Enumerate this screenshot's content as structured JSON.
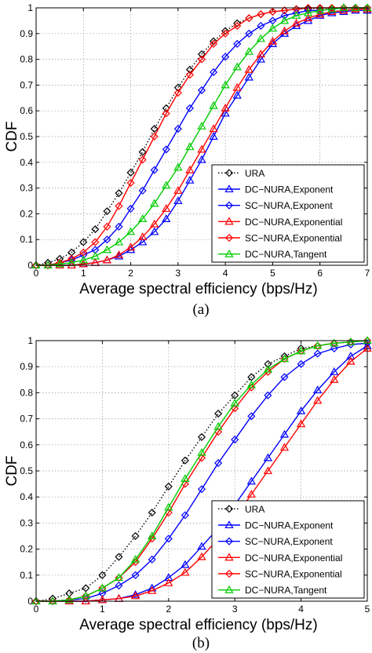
{
  "figure": {
    "captions": [
      "(a)",
      "(b)"
    ]
  },
  "chart_data": [
    {
      "type": "line",
      "caption": "(a)",
      "xlabel": "Average spectral efficiency (bps/Hz)",
      "ylabel": "CDF",
      "xlim": [
        0,
        7
      ],
      "ylim": [
        0,
        1
      ],
      "xticks": [
        "0",
        "1",
        "2",
        "3",
        "4",
        "5",
        "6",
        "7"
      ],
      "yticks": [
        "0",
        "0.1",
        "0.2",
        "0.3",
        "0.4",
        "0.5",
        "0.6",
        "0.7",
        "0.8",
        "0.9",
        "1"
      ],
      "grid": true,
      "legend_position": "bottom-right",
      "series": [
        {
          "name": "URA",
          "color": "#000000",
          "dash": "dotted",
          "marker": "diamond",
          "x": [
            0,
            0.25,
            0.5,
            0.75,
            1,
            1.25,
            1.5,
            1.75,
            2,
            2.25,
            2.5,
            2.75,
            3,
            3.25,
            3.5,
            3.75,
            4,
            4.25,
            4.5,
            4.75,
            5,
            5.25,
            5.5,
            5.75,
            6,
            6.25,
            6.5,
            6.75,
            7
          ],
          "y": [
            0,
            0.01,
            0.025,
            0.05,
            0.09,
            0.14,
            0.21,
            0.28,
            0.36,
            0.44,
            0.53,
            0.61,
            0.69,
            0.76,
            0.82,
            0.87,
            0.91,
            0.94,
            0.96,
            0.975,
            0.985,
            0.99,
            0.995,
            0.997,
            0.998,
            0.999,
            1,
            1,
            1
          ]
        },
        {
          "name": "DC−NURA,Exponent",
          "color": "#0000ff",
          "dash": "solid",
          "marker": "triangle",
          "x": [
            0,
            0.25,
            0.5,
            0.75,
            1,
            1.25,
            1.5,
            1.75,
            2,
            2.25,
            2.5,
            2.75,
            3,
            3.25,
            3.5,
            3.75,
            4,
            4.25,
            4.5,
            4.75,
            5,
            5.25,
            5.5,
            5.75,
            6,
            6.25,
            6.5,
            6.75,
            7
          ],
          "y": [
            0,
            0,
            0,
            0,
            0.005,
            0.01,
            0.02,
            0.035,
            0.06,
            0.09,
            0.13,
            0.18,
            0.25,
            0.33,
            0.41,
            0.5,
            0.59,
            0.66,
            0.73,
            0.8,
            0.86,
            0.9,
            0.93,
            0.95,
            0.97,
            0.98,
            0.985,
            0.99,
            0.99
          ]
        },
        {
          "name": "SC−NURA,Exponent",
          "color": "#0000ff",
          "dash": "solid",
          "marker": "diamond",
          "x": [
            0,
            0.25,
            0.5,
            0.75,
            1,
            1.25,
            1.5,
            1.75,
            2,
            2.25,
            2.5,
            2.75,
            3,
            3.25,
            3.5,
            3.75,
            4,
            4.25,
            4.5,
            4.75,
            5,
            5.25,
            5.5,
            5.75,
            6,
            6.25,
            6.5,
            6.75,
            7
          ],
          "y": [
            0,
            0,
            0.01,
            0.02,
            0.04,
            0.06,
            0.1,
            0.15,
            0.22,
            0.29,
            0.37,
            0.45,
            0.53,
            0.61,
            0.68,
            0.75,
            0.81,
            0.86,
            0.9,
            0.93,
            0.95,
            0.97,
            0.98,
            0.99,
            0.99,
            0.995,
            1,
            1,
            1
          ]
        },
        {
          "name": "DC−NURA,Exponential",
          "color": "#ff0000",
          "dash": "solid",
          "marker": "triangle",
          "x": [
            0,
            0.25,
            0.5,
            0.75,
            1,
            1.25,
            1.5,
            1.75,
            2,
            2.25,
            2.5,
            2.75,
            3,
            3.25,
            3.5,
            3.75,
            4,
            4.25,
            4.5,
            4.75,
            5,
            5.25,
            5.5,
            5.75,
            6,
            6.25,
            6.5,
            6.75,
            7
          ],
          "y": [
            0,
            0,
            0,
            0,
            0.005,
            0.01,
            0.02,
            0.04,
            0.07,
            0.11,
            0.16,
            0.22,
            0.29,
            0.37,
            0.45,
            0.53,
            0.61,
            0.69,
            0.76,
            0.82,
            0.87,
            0.91,
            0.94,
            0.96,
            0.975,
            0.985,
            0.99,
            0.995,
            0.995
          ]
        },
        {
          "name": "SC−NURA,Exponential",
          "color": "#ff0000",
          "dash": "solid",
          "marker": "diamond",
          "x": [
            0,
            0.25,
            0.5,
            0.75,
            1,
            1.25,
            1.5,
            1.75,
            2,
            2.25,
            2.5,
            2.75,
            3,
            3.25,
            3.5,
            3.75,
            4,
            4.25,
            4.5,
            4.75,
            5,
            5.25,
            5.5,
            5.75,
            6,
            6.25,
            6.5,
            6.75,
            7
          ],
          "y": [
            0,
            0,
            0.01,
            0.025,
            0.05,
            0.09,
            0.15,
            0.23,
            0.32,
            0.41,
            0.5,
            0.59,
            0.67,
            0.74,
            0.8,
            0.86,
            0.9,
            0.93,
            0.96,
            0.975,
            0.985,
            0.99,
            0.995,
            1,
            1,
            1,
            1,
            1,
            1
          ]
        },
        {
          "name": "DC−NURA,Tangent",
          "color": "#00cc00",
          "dash": "solid",
          "marker": "triangle",
          "x": [
            0,
            0.25,
            0.5,
            0.75,
            1,
            1.25,
            1.5,
            1.75,
            2,
            2.25,
            2.5,
            2.75,
            3,
            3.25,
            3.5,
            3.75,
            4,
            4.25,
            4.5,
            4.75,
            5,
            5.25,
            5.5,
            5.75,
            6,
            6.25,
            6.5,
            6.75,
            7
          ],
          "y": [
            0,
            0,
            0.005,
            0.01,
            0.02,
            0.035,
            0.06,
            0.09,
            0.13,
            0.18,
            0.24,
            0.31,
            0.38,
            0.46,
            0.54,
            0.62,
            0.7,
            0.77,
            0.83,
            0.88,
            0.92,
            0.95,
            0.97,
            0.98,
            0.99,
            0.995,
            1,
            1,
            1
          ]
        }
      ]
    },
    {
      "type": "line",
      "caption": "(b)",
      "xlabel": "Average spectral efficiency (bps/Hz)",
      "ylabel": "CDF",
      "xlim": [
        0,
        5
      ],
      "ylim": [
        0,
        1
      ],
      "xticks": [
        "0",
        "1",
        "2",
        "3",
        "4",
        "5"
      ],
      "yticks": [
        "0",
        "0.1",
        "0.2",
        "0.3",
        "0.4",
        "0.5",
        "0.6",
        "0.7",
        "0.8",
        "0.9",
        "1"
      ],
      "grid": true,
      "legend_position": "bottom-right",
      "series": [
        {
          "name": "URA",
          "color": "#000000",
          "dash": "dotted",
          "marker": "diamond",
          "x": [
            0,
            0.25,
            0.5,
            0.75,
            1,
            1.25,
            1.5,
            1.75,
            2,
            2.25,
            2.5,
            2.75,
            3,
            3.25,
            3.5,
            3.75,
            4,
            4.25,
            4.5,
            4.75,
            5
          ],
          "y": [
            0,
            0.01,
            0.03,
            0.05,
            0.1,
            0.17,
            0.25,
            0.34,
            0.44,
            0.54,
            0.63,
            0.72,
            0.79,
            0.86,
            0.91,
            0.94,
            0.97,
            0.98,
            0.99,
            0.995,
            1
          ]
        },
        {
          "name": "DC−NURA,Exponent",
          "color": "#0000ff",
          "dash": "solid",
          "marker": "triangle",
          "x": [
            0,
            0.25,
            0.5,
            0.75,
            1,
            1.25,
            1.5,
            1.75,
            2,
            2.25,
            2.5,
            2.75,
            3,
            3.25,
            3.5,
            3.75,
            4,
            4.25,
            4.5,
            4.75,
            5
          ],
          "y": [
            0,
            0,
            0,
            0,
            0.005,
            0.01,
            0.025,
            0.05,
            0.09,
            0.14,
            0.21,
            0.28,
            0.37,
            0.46,
            0.55,
            0.64,
            0.73,
            0.81,
            0.88,
            0.94,
            0.98
          ]
        },
        {
          "name": "SC−NURA,Exponent",
          "color": "#0000ff",
          "dash": "solid",
          "marker": "diamond",
          "x": [
            0,
            0.25,
            0.5,
            0.75,
            1,
            1.25,
            1.5,
            1.75,
            2,
            2.25,
            2.5,
            2.75,
            3,
            3.25,
            3.5,
            3.75,
            4,
            4.25,
            4.5,
            4.75,
            5
          ],
          "y": [
            0,
            0,
            0.005,
            0.01,
            0.03,
            0.06,
            0.1,
            0.16,
            0.24,
            0.33,
            0.43,
            0.53,
            0.62,
            0.71,
            0.79,
            0.86,
            0.91,
            0.95,
            0.97,
            0.985,
            0.99
          ]
        },
        {
          "name": "DC−NURA,Exponential",
          "color": "#ff0000",
          "dash": "solid",
          "marker": "triangle",
          "x": [
            0,
            0.25,
            0.5,
            0.75,
            1,
            1.25,
            1.5,
            1.75,
            2,
            2.25,
            2.5,
            2.75,
            3,
            3.25,
            3.5,
            3.75,
            4,
            4.25,
            4.5,
            4.75,
            5
          ],
          "y": [
            0,
            0,
            0,
            0,
            0.005,
            0.01,
            0.02,
            0.04,
            0.07,
            0.11,
            0.17,
            0.24,
            0.32,
            0.41,
            0.5,
            0.59,
            0.68,
            0.77,
            0.85,
            0.92,
            0.97
          ]
        },
        {
          "name": "SC−NURA,Exponential",
          "color": "#ff0000",
          "dash": "solid",
          "marker": "diamond",
          "x": [
            0,
            0.25,
            0.5,
            0.75,
            1,
            1.25,
            1.5,
            1.75,
            2,
            2.25,
            2.5,
            2.75,
            3,
            3.25,
            3.5,
            3.75,
            4,
            4.25,
            4.5,
            4.75,
            5
          ],
          "y": [
            0,
            0,
            0.005,
            0.02,
            0.05,
            0.09,
            0.15,
            0.24,
            0.34,
            0.45,
            0.55,
            0.65,
            0.74,
            0.82,
            0.88,
            0.93,
            0.96,
            0.98,
            0.99,
            0.995,
            1
          ]
        },
        {
          "name": "DC−NURA,Tangent",
          "color": "#00cc00",
          "dash": "solid",
          "marker": "triangle",
          "x": [
            0,
            0.25,
            0.5,
            0.75,
            1,
            1.25,
            1.5,
            1.75,
            2,
            2.25,
            2.5,
            2.75,
            3,
            3.25,
            3.5,
            3.75,
            4,
            4.25,
            4.5,
            4.75,
            5
          ],
          "y": [
            0,
            0,
            0.005,
            0.02,
            0.05,
            0.09,
            0.16,
            0.25,
            0.36,
            0.47,
            0.57,
            0.67,
            0.76,
            0.83,
            0.89,
            0.93,
            0.96,
            0.98,
            0.99,
            0.995,
            1
          ]
        }
      ]
    }
  ]
}
